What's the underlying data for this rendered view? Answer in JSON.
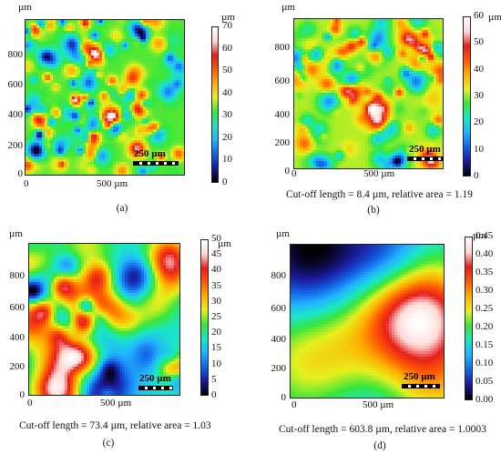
{
  "colors": {
    "cmap": [
      "#000000",
      "#1a1a9c",
      "#1464e6",
      "#22b4ff",
      "#18e6c8",
      "#39e639",
      "#e6f01e",
      "#ffb000",
      "#ff5a00",
      "#e61e1e",
      "#ffd7d2",
      "#ffffff"
    ]
  },
  "panels": [
    {
      "id": "a",
      "unit": "µm",
      "yticks": [
        "800",
        "600",
        "400",
        "200",
        "0"
      ],
      "xticks": [
        "0",
        "500 µm"
      ],
      "cbunit": "µm",
      "cbticks": [
        "70",
        "60",
        "50",
        "40",
        "30",
        "20",
        "10",
        "0"
      ],
      "scalebar": "250 µm",
      "caption": "",
      "label": "(a)"
    },
    {
      "id": "b",
      "unit": "µm",
      "yticks": [
        "800",
        "600",
        "400",
        "200",
        "0"
      ],
      "xticks": [
        "0",
        "500 µm"
      ],
      "cbunit": "µm",
      "cbticks": [
        "60",
        "50",
        "40",
        "30",
        "20",
        "10",
        "0"
      ],
      "scalebar": "250 µm",
      "caption": "Cut-off length = 8.4 µm, relative area = 1.19",
      "label": "(b)"
    },
    {
      "id": "c",
      "unit": "µm",
      "yticks": [
        "800",
        "600",
        "400",
        "200",
        "0"
      ],
      "xticks": [
        "0",
        "500 µm"
      ],
      "cbunit": "µm",
      "cbticks": [
        "50",
        "45",
        "40",
        "35",
        "30",
        "25",
        "20",
        "15",
        "10",
        "5",
        "0"
      ],
      "scalebar": "250 µm",
      "caption": "Cut-off length = 73.4 µm, relative area = 1.03",
      "label": "(c)"
    },
    {
      "id": "d",
      "unit": "µm",
      "yticks": [
        "800",
        "600",
        "400",
        "200",
        "0"
      ],
      "xticks": [
        "0",
        "500 µm"
      ],
      "cbunit": "µm",
      "cbticks": [
        "0.45",
        "0.40",
        "0.35",
        "0.30",
        "0.25",
        "0.20",
        "0.15",
        "0.10",
        "0.05",
        "0.00"
      ],
      "scalebar": "250 µm",
      "caption": "Cut-off length = 603.8 µm, relative area = 1.0003",
      "label": "(d)"
    }
  ]
}
